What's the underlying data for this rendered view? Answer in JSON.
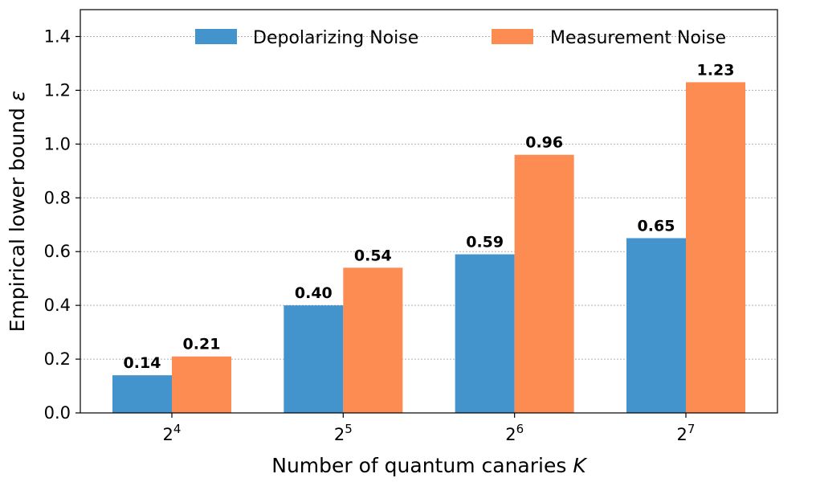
{
  "chart_data": {
    "type": "bar",
    "title": "",
    "categories": [
      "2^4",
      "2^5",
      "2^6",
      "2^7"
    ],
    "category_base": "2",
    "category_exponents": [
      "4",
      "5",
      "6",
      "7"
    ],
    "series": [
      {
        "name": "Depolarizing Noise",
        "color": "#4393cc",
        "values": [
          0.14,
          0.4,
          0.59,
          0.65
        ],
        "labels": [
          "0.14",
          "0.40",
          "0.59",
          "0.65"
        ]
      },
      {
        "name": "Measurement Noise",
        "color": "#fd8c52",
        "values": [
          0.21,
          0.54,
          0.96,
          1.23
        ],
        "labels": [
          "0.21",
          "0.54",
          "0.96",
          "1.23"
        ]
      }
    ],
    "xlabel_text": "Number of quantum canaries ",
    "xlabel_symbol": "K",
    "ylabel_text": "Empirical lower bound ",
    "ylabel_symbol": "ε",
    "ylim": [
      0,
      1.5
    ],
    "yticks": [
      "0.0",
      "0.2",
      "0.4",
      "0.6",
      "0.8",
      "1.0",
      "1.2",
      "1.4"
    ],
    "grid": "y-dotted",
    "legend_position": "top-right"
  }
}
